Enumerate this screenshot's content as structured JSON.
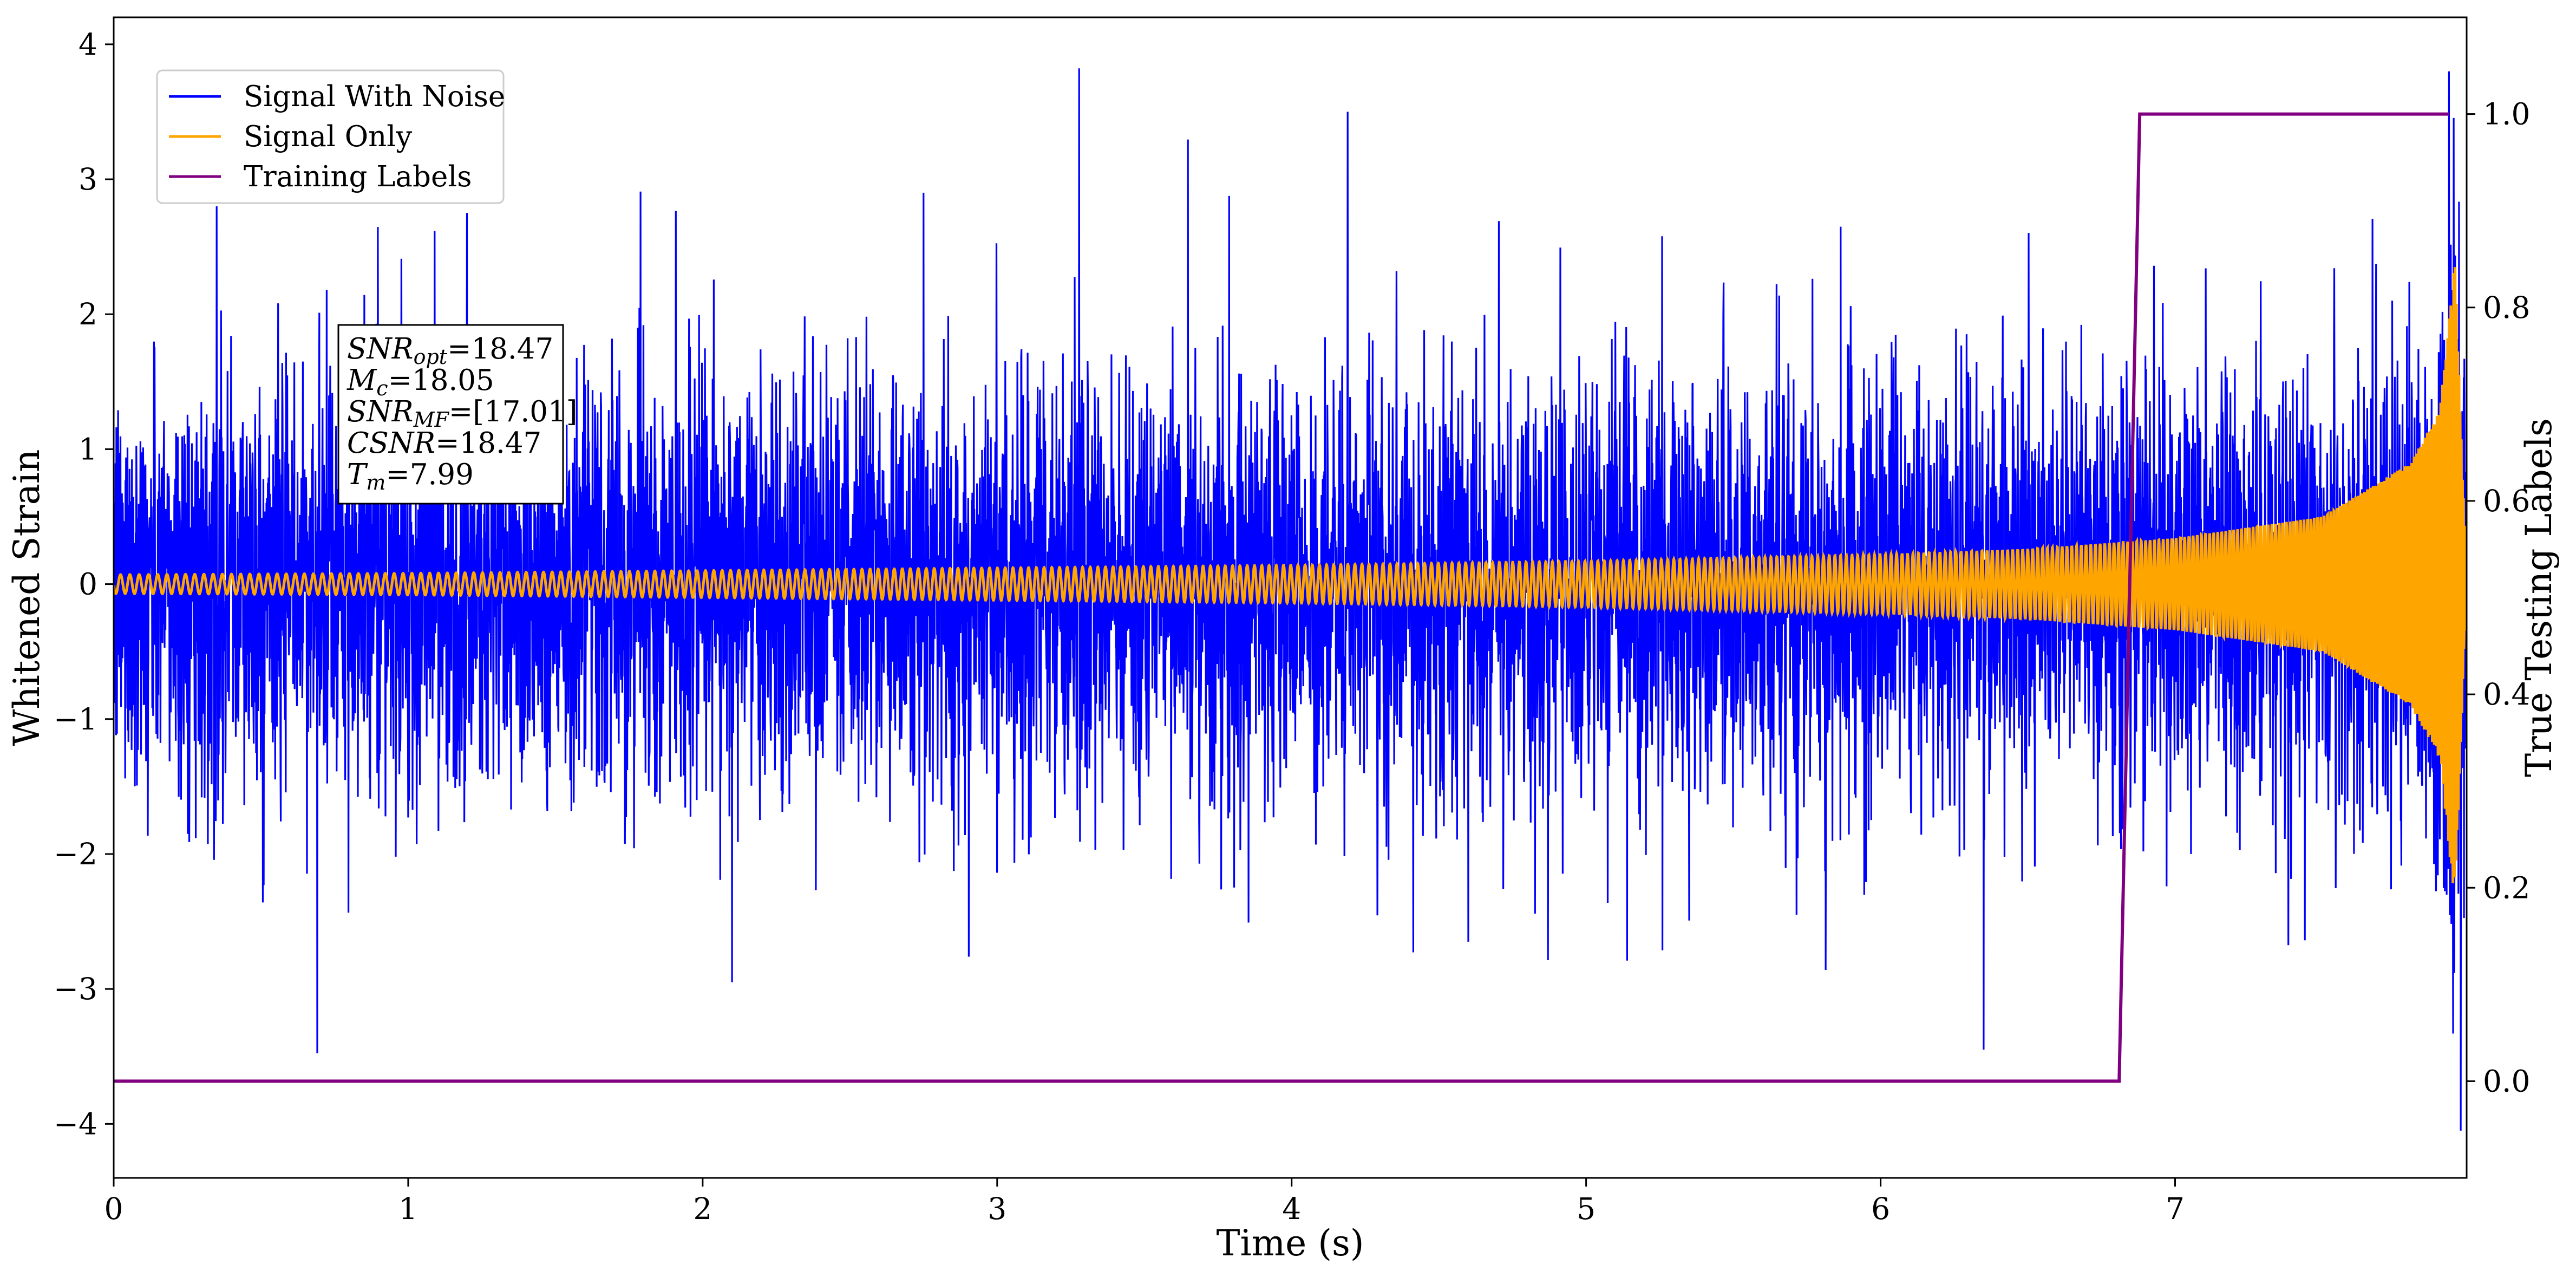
{
  "chart_data": {
    "type": "line",
    "xlabel": "Time (s)",
    "ylabel": "Whitened Strain",
    "ylabel_right": "True Testing Labels",
    "xlim": [
      0,
      7.99
    ],
    "ylim": [
      -4.4,
      4.2
    ],
    "ylim_right": [
      -0.1,
      1.1
    ],
    "xticks": [
      "0",
      "1",
      "2",
      "3",
      "4",
      "5",
      "6",
      "7"
    ],
    "yticks": [
      "4",
      "3",
      "2",
      "1",
      "0",
      "−1",
      "−2",
      "−3",
      "−4"
    ],
    "yticks_right": [
      "0.0",
      "0.2",
      "0.4",
      "0.6",
      "0.8",
      "1.0"
    ],
    "legend_position": "top-left",
    "grid": false,
    "series": [
      {
        "name": "Signal With Noise",
        "axis": "left",
        "color": "#0000ff",
        "description_values": "noise, approx. std 0.75, range about -3.4 to 3.8",
        "x": [
          0,
          0.35,
          1.2,
          2.1,
          2.75,
          4.19,
          4.6,
          6.35,
          7.93,
          7.97
        ],
        "values": [
          0.6,
          2.8,
          2.75,
          -2.95,
          2.9,
          3.5,
          -2.65,
          -3.45,
          3.8,
          -4.05
        ]
      },
      {
        "name": "Signal Only",
        "axis": "left",
        "color": "#ffa500",
        "x": [
          0,
          1,
          2,
          3,
          4,
          5,
          6,
          6.5,
          7,
          7.5,
          7.8,
          7.9,
          7.95,
          7.99
        ],
        "values": [
          0.07,
          0.08,
          0.1,
          0.12,
          0.14,
          0.17,
          0.22,
          0.26,
          0.34,
          0.5,
          0.9,
          1.3,
          2.4,
          0.0
        ]
      },
      {
        "name": "Training Labels",
        "axis": "right",
        "color": "#800080",
        "x": [
          0,
          6.81,
          6.88,
          7.93
        ],
        "values": [
          0.0,
          0.0,
          1.0,
          1.0
        ]
      }
    ],
    "annotation": {
      "lines": [
        {
          "sym": "SNR",
          "sub": "opt",
          "val": "=18.47"
        },
        {
          "sym": "M",
          "sub": "c",
          "val": "=18.05"
        },
        {
          "sym": "SNR",
          "sub": "MF",
          "val": "=[17.01]"
        },
        {
          "sym": "CSNR",
          "sub": "",
          "val": "=18.47"
        },
        {
          "sym": "T",
          "sub": "m",
          "val": "=7.99"
        }
      ]
    }
  }
}
